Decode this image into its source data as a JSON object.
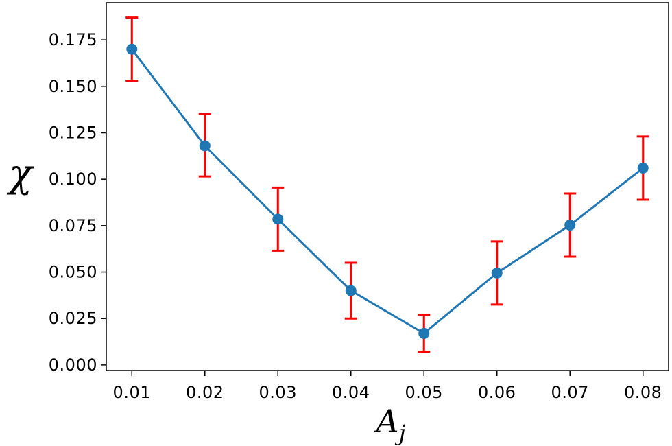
{
  "chart_data": {
    "type": "line",
    "title": "",
    "xlabel": "A",
    "xlabel_subscript": "j",
    "ylabel": "χ",
    "x": [
      0.01,
      0.02,
      0.03,
      0.04,
      0.05,
      0.06,
      0.07,
      0.08
    ],
    "series": [
      {
        "values": [
          0.17,
          0.118,
          0.0785,
          0.04,
          0.017,
          0.0495,
          0.0753,
          0.106
        ],
        "error_lower": [
          0.153,
          0.1015,
          0.0615,
          0.025,
          0.007,
          0.0325,
          0.0583,
          0.089
        ],
        "error_upper": [
          0.187,
          0.135,
          0.0955,
          0.055,
          0.027,
          0.0665,
          0.0923,
          0.123
        ],
        "color": "#1f77b4",
        "error_color": "#ff0000"
      }
    ],
    "xticks": [
      "0.01",
      "0.02",
      "0.03",
      "0.04",
      "0.05",
      "0.06",
      "0.07",
      "0.08"
    ],
    "yticks": [
      "0.000",
      "0.025",
      "0.050",
      "0.075",
      "0.100",
      "0.125",
      "0.150",
      "0.175"
    ],
    "xlim": [
      0.0065,
      0.0835
    ],
    "ylim": [
      -0.003,
      0.195
    ],
    "grid": false,
    "legend": "none"
  }
}
